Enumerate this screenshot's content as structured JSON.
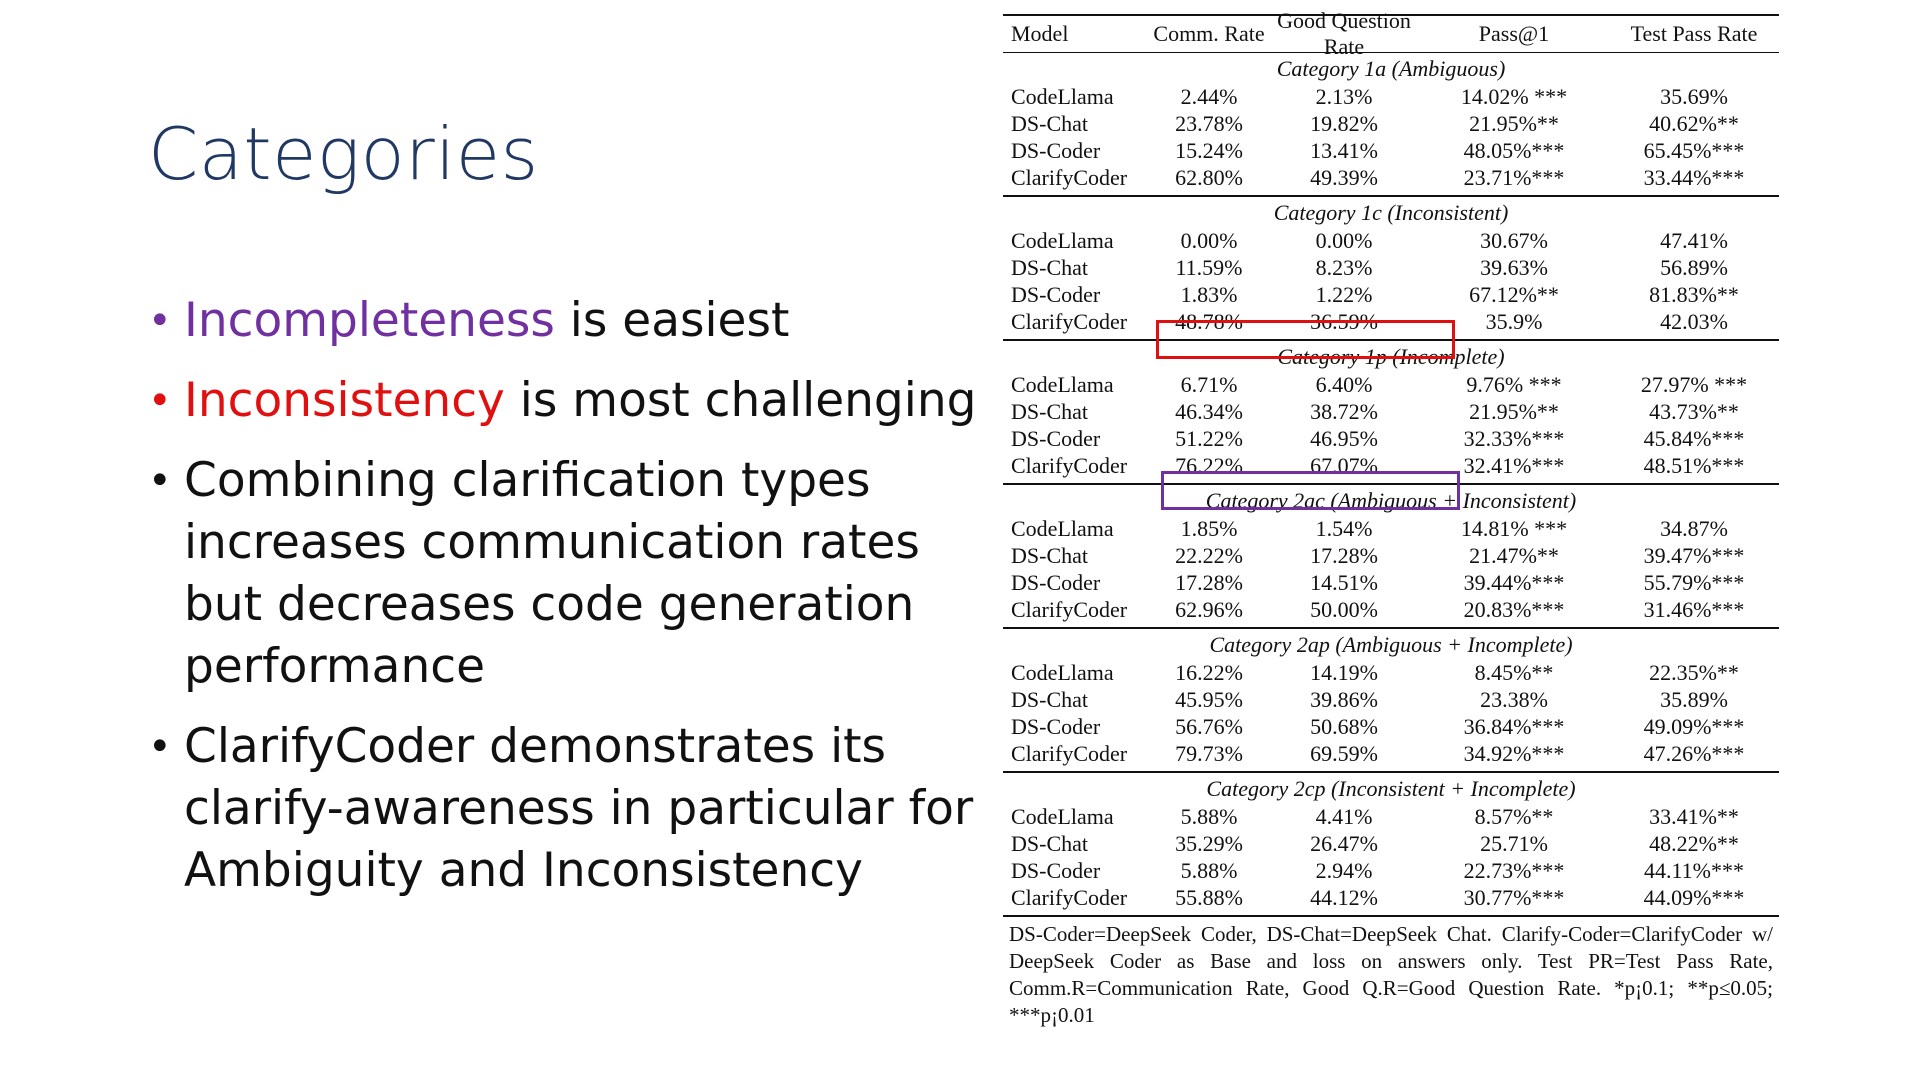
{
  "slide": {
    "title": "Categories",
    "bullets": [
      {
        "highlight": "Incompleteness",
        "rest": " is easiest"
      },
      {
        "highlight": "Inconsistency",
        "rest": " is most challenging"
      },
      {
        "text": "Combining clarification types increases communication rates but decreases code generation performance"
      },
      {
        "text": "ClarifyCoder demonstrates its clarify-awareness in particular for Ambiguity and Inconsistency"
      }
    ]
  },
  "table": {
    "headers": [
      "Model",
      "Comm. Rate",
      "Good Question Rate",
      "Pass@1",
      "Test Pass Rate"
    ],
    "sections": [
      {
        "title": "Category 1a (Ambiguous)",
        "rows": [
          [
            "CodeLlama",
            "2.44%",
            "2.13%",
            "14.02% ***",
            "35.69%"
          ],
          [
            "DS-Chat",
            "23.78%",
            "19.82%",
            "21.95%**",
            "40.62%**"
          ],
          [
            "DS-Coder",
            "15.24%",
            "13.41%",
            "48.05%***",
            "65.45%***"
          ],
          [
            "ClarifyCoder",
            "62.80%",
            "49.39%",
            "23.71%***",
            "33.44%***"
          ]
        ]
      },
      {
        "title": "Category 1c (Inconsistent)",
        "rows": [
          [
            "CodeLlama",
            "0.00%",
            "0.00%",
            "30.67%",
            "47.41%"
          ],
          [
            "DS-Chat",
            "11.59%",
            "8.23%",
            "39.63%",
            "56.89%"
          ],
          [
            "DS-Coder",
            "1.83%",
            "1.22%",
            "67.12%**",
            "81.83%**"
          ],
          [
            "ClarifyCoder",
            "48.78%",
            "36.59%",
            "35.9%",
            "42.03%"
          ]
        ]
      },
      {
        "title": "Category 1p (Incomplete)",
        "rows": [
          [
            "CodeLlama",
            "6.71%",
            "6.40%",
            "9.76% ***",
            "27.97% ***"
          ],
          [
            "DS-Chat",
            "46.34%",
            "38.72%",
            "21.95%**",
            "43.73%**"
          ],
          [
            "DS-Coder",
            "51.22%",
            "46.95%",
            "32.33%***",
            "45.84%***"
          ],
          [
            "ClarifyCoder",
            "76.22%",
            "67.07%",
            "32.41%***",
            "48.51%***"
          ]
        ]
      },
      {
        "title": "Category 2ac (Ambiguous + Inconsistent)",
        "rows": [
          [
            "CodeLlama",
            "1.85%",
            "1.54%",
            "14.81% ***",
            "34.87%"
          ],
          [
            "DS-Chat",
            "22.22%",
            "17.28%",
            "21.47%**",
            "39.47%***"
          ],
          [
            "DS-Coder",
            "17.28%",
            "14.51%",
            "39.44%***",
            "55.79%***"
          ],
          [
            "ClarifyCoder",
            "62.96%",
            "50.00%",
            "20.83%***",
            "31.46%***"
          ]
        ]
      },
      {
        "title": "Category 2ap (Ambiguous + Incomplete)",
        "rows": [
          [
            "CodeLlama",
            "16.22%",
            "14.19%",
            "8.45%**",
            "22.35%**"
          ],
          [
            "DS-Chat",
            "45.95%",
            "39.86%",
            "23.38%",
            "35.89%"
          ],
          [
            "DS-Coder",
            "56.76%",
            "50.68%",
            "36.84%***",
            "49.09%***"
          ],
          [
            "ClarifyCoder",
            "79.73%",
            "69.59%",
            "34.92%***",
            "47.26%***"
          ]
        ]
      },
      {
        "title": "Category 2cp (Inconsistent + Incomplete)",
        "rows": [
          [
            "CodeLlama",
            "5.88%",
            "4.41%",
            "8.57%**",
            "33.41%**"
          ],
          [
            "DS-Chat",
            "35.29%",
            "26.47%",
            "25.71%",
            "48.22%**"
          ],
          [
            "DS-Coder",
            "5.88%",
            "2.94%",
            "22.73%***",
            "44.11%***"
          ],
          [
            "ClarifyCoder",
            "55.88%",
            "44.12%",
            "30.77%***",
            "44.09%***"
          ]
        ]
      }
    ],
    "footnote": "DS-Coder=DeepSeek Coder, DS-Chat=DeepSeek Chat. Clarify-Coder=ClarifyCoder w/ DeepSeek Coder as Base and loss on answers only. Test PR=Test Pass Rate, Comm.R=Communication Rate, Good Q.R=Good Question Rate. *p¡0.1; **p≤0.05; ***p¡0.01"
  },
  "colors": {
    "title": "#203864",
    "incompleteness": "#7030a0",
    "inconsistency": "#e01010",
    "red_box": "#e01010",
    "purple_box": "#7030a0"
  }
}
